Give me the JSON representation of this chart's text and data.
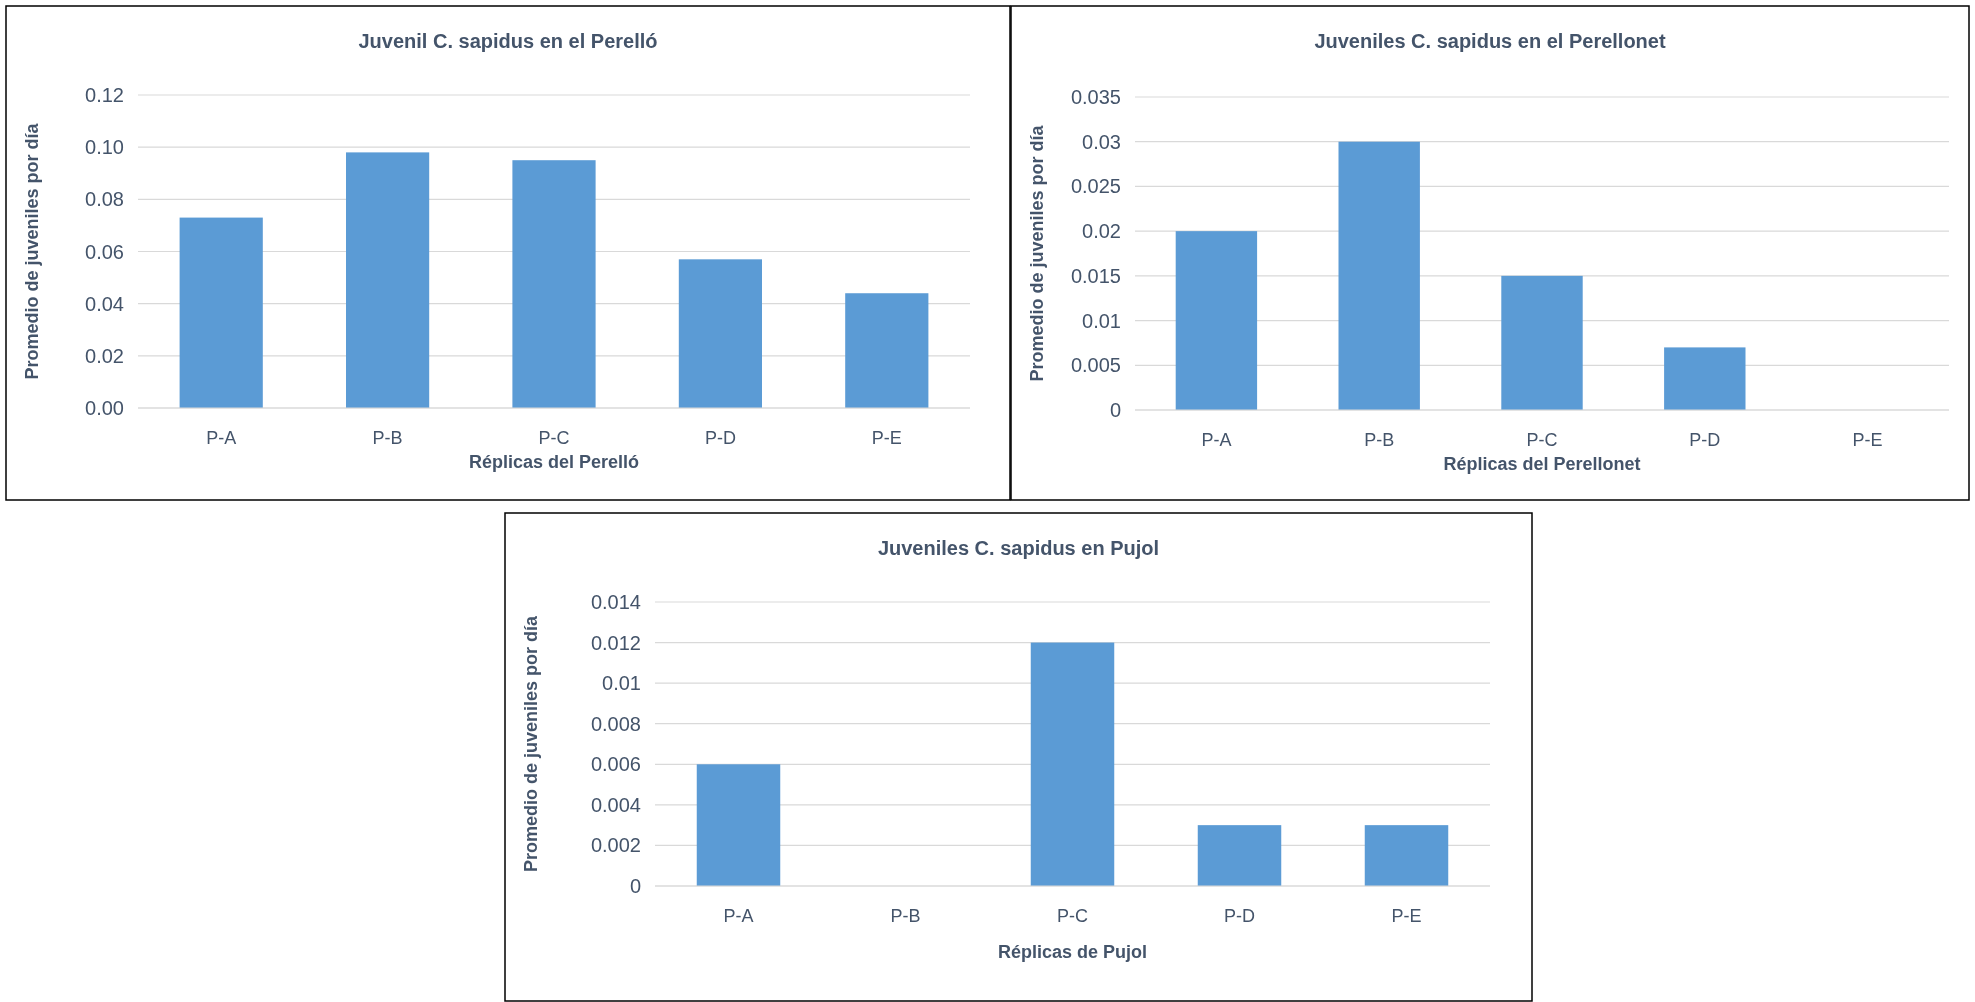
{
  "chart_data": [
    {
      "type": "bar",
      "title": "Juvenil C. sapidus en el Perelló",
      "xlabel": "Réplicas del Perelló",
      "ylabel": "Promedio de juveniles por día",
      "categories": [
        "P-A",
        "P-B",
        "P-C",
        "P-D",
        "P-E"
      ],
      "values": [
        0.073,
        0.098,
        0.095,
        0.057,
        0.044
      ],
      "color": "#5b9bd5",
      "ylim": [
        0,
        0.12
      ],
      "yticks": [
        {
          "value": 0,
          "label": "0.00"
        },
        {
          "value": 0.02,
          "label": "0.02"
        },
        {
          "value": 0.04,
          "label": "0.04"
        },
        {
          "value": 0.06,
          "label": "0.06"
        },
        {
          "value": 0.08,
          "label": "0.08"
        },
        {
          "value": 0.1,
          "label": "0.10"
        },
        {
          "value": 0.12,
          "label": "0.12"
        }
      ],
      "grid": "y"
    },
    {
      "type": "bar",
      "title": "Juveniles C. sapidus en el Perellonet",
      "xlabel": "Réplicas del Perellonet",
      "ylabel": "Promedio de juveniles por día",
      "categories": [
        "P-A",
        "P-B",
        "P-C",
        "P-D",
        "P-E"
      ],
      "values": [
        0.02,
        0.03,
        0.015,
        0.007,
        0
      ],
      "color": "#5b9bd5",
      "ylim": [
        0,
        0.035
      ],
      "yticks": [
        0,
        0.005,
        0.01,
        0.015,
        0.02,
        0.025,
        0.03,
        0.035
      ],
      "grid": "y"
    },
    {
      "type": "bar",
      "title": "Juveniles C. sapidus en Pujol",
      "xlabel": "Réplicas de Pujol",
      "ylabel": "Promedio de juveniles por día",
      "categories": [
        "P-A",
        "P-B",
        "P-C",
        "P-D",
        "P-E"
      ],
      "values": [
        0.006,
        0,
        0.012,
        0.003,
        0.003
      ],
      "color": "#5b9bd5",
      "ylim": [
        0,
        0.014
      ],
      "yticks": [
        0,
        0.002,
        0.004,
        0.006,
        0.008,
        0.01,
        0.012,
        0.014
      ],
      "grid": "y"
    }
  ]
}
